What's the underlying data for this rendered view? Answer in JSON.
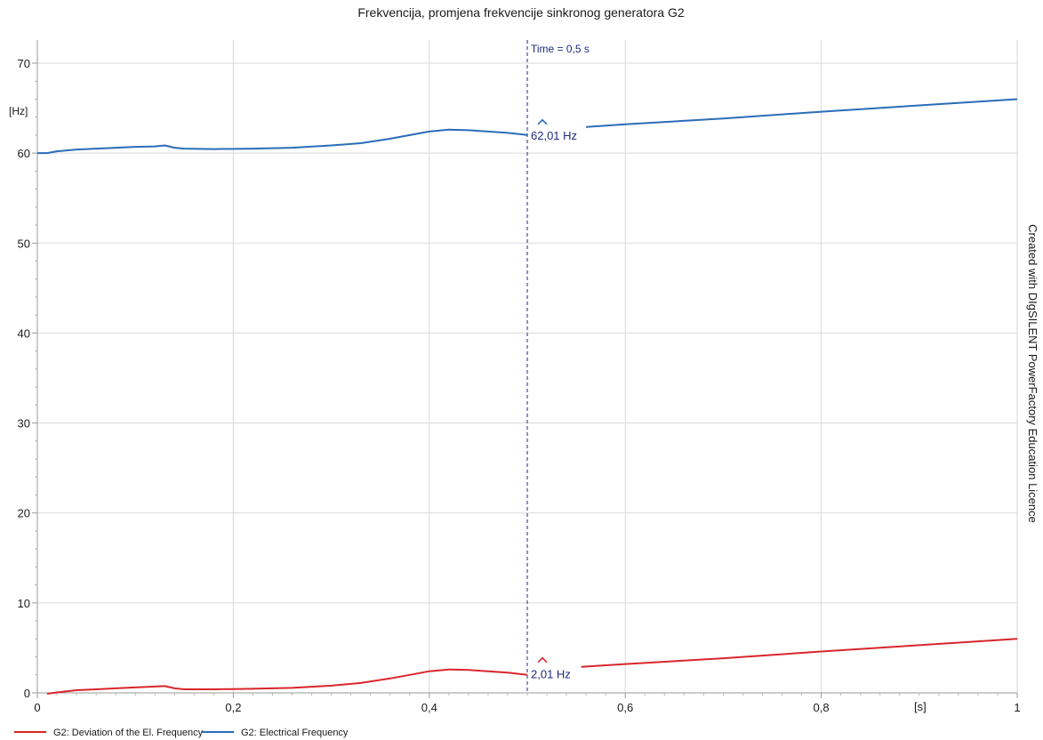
{
  "chart_data": {
    "type": "line",
    "title": "Frekvencija, promjena frekvencije sinkronog generatora G2",
    "ylabel": "[Hz]",
    "xlabel": "[s]",
    "xlim": [
      0,
      1
    ],
    "ylim": [
      0,
      72
    ],
    "x_ticks": [
      0,
      0.2,
      0.4,
      0.6,
      0.8,
      1
    ],
    "x_tick_labels": [
      "0",
      "0,2",
      "0,4",
      "0,6",
      "0,8",
      "1"
    ],
    "y_ticks": [
      0,
      10,
      20,
      30,
      40,
      50,
      60,
      70
    ],
    "y_tick_labels": [
      "0",
      "10",
      "20",
      "30",
      "40",
      "50",
      "60",
      "70"
    ],
    "grid": true,
    "legend_position": "bottom-left",
    "series": [
      {
        "name": "G2: Deviation of the El. Frequency",
        "color": "#d9262b",
        "x": [
          0.01,
          0.02,
          0.04,
          0.06,
          0.08,
          0.1,
          0.12,
          0.13,
          0.14,
          0.15,
          0.18,
          0.22,
          0.26,
          0.3,
          0.33,
          0.36,
          0.38,
          0.4,
          0.42,
          0.44,
          0.46,
          0.48,
          0.5
        ],
        "y": [
          -0.1,
          0.05,
          0.3,
          0.4,
          0.5,
          0.6,
          0.7,
          0.75,
          0.5,
          0.4,
          0.4,
          0.45,
          0.55,
          0.8,
          1.1,
          1.6,
          2.0,
          2.4,
          2.6,
          2.55,
          2.4,
          2.25,
          2.01
        ],
        "x2": [
          0.555,
          0.6,
          0.7,
          0.8,
          0.9,
          1.0
        ],
        "y2": [
          2.9,
          3.2,
          3.85,
          4.6,
          5.3,
          6.0
        ]
      },
      {
        "name": "G2: Electrical Frequency",
        "color": "#2a6cb8",
        "x": [
          0,
          0.01,
          0.02,
          0.04,
          0.06,
          0.08,
          0.1,
          0.12,
          0.13,
          0.14,
          0.15,
          0.18,
          0.22,
          0.26,
          0.3,
          0.33,
          0.36,
          0.38,
          0.4,
          0.42,
          0.44,
          0.46,
          0.48,
          0.5
        ],
        "y": [
          60.0,
          60.0,
          60.2,
          60.4,
          60.5,
          60.6,
          60.7,
          60.75,
          60.85,
          60.6,
          60.5,
          60.45,
          60.5,
          60.6,
          60.85,
          61.1,
          61.6,
          62.0,
          62.4,
          62.6,
          62.55,
          62.4,
          62.25,
          62.01
        ],
        "x2": [
          0.56,
          0.6,
          0.7,
          0.8,
          0.9,
          1.0
        ],
        "y2": [
          62.9,
          63.2,
          63.85,
          64.6,
          65.3,
          66.0
        ]
      }
    ],
    "annotations": {
      "cursor_time": 0.5,
      "cursor_label": "Time = 0,5 s",
      "label_blue": "62,01 Hz",
      "label_blue_y": 62.01,
      "label_red": "2,01 Hz",
      "label_red_y": 2.01
    },
    "side_text": "Created with DIgSILENT PowerFactory Education Licence"
  }
}
